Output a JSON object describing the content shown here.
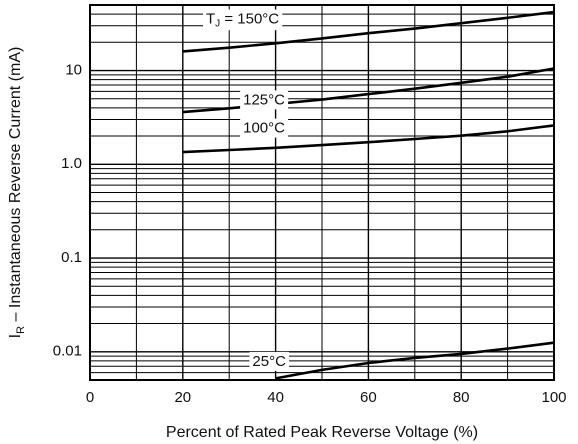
{
  "chart_data": {
    "type": "line",
    "title": "",
    "xlabel": "Percent of Rated Peak Reverse Voltage (%)",
    "ylabel_prefix": "I",
    "ylabel_sub": "R",
    "ylabel_rest": " – Instantaneous Reverse Current (mA)",
    "xlim": [
      0,
      100
    ],
    "ylim": [
      0.005,
      50
    ],
    "yscale": "log",
    "grid": true,
    "x_ticks": [
      "0",
      "20",
      "40",
      "60",
      "80",
      "100"
    ],
    "y_ticks": [
      {
        "value": 0.01,
        "label": "0.01"
      },
      {
        "value": 0.1,
        "label": "0.1"
      },
      {
        "value": 1,
        "label": "1.0"
      },
      {
        "value": 10,
        "label": "10"
      }
    ],
    "series": [
      {
        "name": "TJ = 150°C",
        "label_prefix": "T",
        "label_sub": "J",
        "label_rest": " = 150°C",
        "label_at": [
          25,
          35
        ],
        "x": [
          20,
          30,
          40,
          50,
          60,
          70,
          80,
          90,
          100
        ],
        "y": [
          16,
          17.5,
          19.5,
          22,
          25,
          28,
          32,
          36.5,
          42
        ]
      },
      {
        "name": "125°C",
        "label_prefix": "125°C",
        "label_sub": "",
        "label_rest": "",
        "label_at": [
          33,
          4.8
        ],
        "x": [
          20,
          30,
          40,
          50,
          60,
          70,
          80,
          90,
          100
        ],
        "y": [
          3.6,
          3.95,
          4.4,
          4.9,
          5.6,
          6.4,
          7.4,
          8.6,
          10.5
        ]
      },
      {
        "name": "100°C",
        "label_prefix": "100°C",
        "label_sub": "",
        "label_rest": "",
        "label_at": [
          33,
          2.4
        ],
        "x": [
          20,
          30,
          40,
          50,
          60,
          70,
          80,
          90,
          100
        ],
        "y": [
          1.35,
          1.42,
          1.5,
          1.6,
          1.72,
          1.86,
          2.02,
          2.25,
          2.6
        ]
      },
      {
        "name": "25°C",
        "label_prefix": "25°C",
        "label_sub": "",
        "label_rest": "",
        "label_at": [
          35,
          0.0078
        ],
        "x": [
          40,
          50,
          60,
          70,
          80,
          90,
          100
        ],
        "y": [
          0.0052,
          0.0064,
          0.0076,
          0.0086,
          0.0095,
          0.0108,
          0.0125
        ]
      }
    ]
  }
}
